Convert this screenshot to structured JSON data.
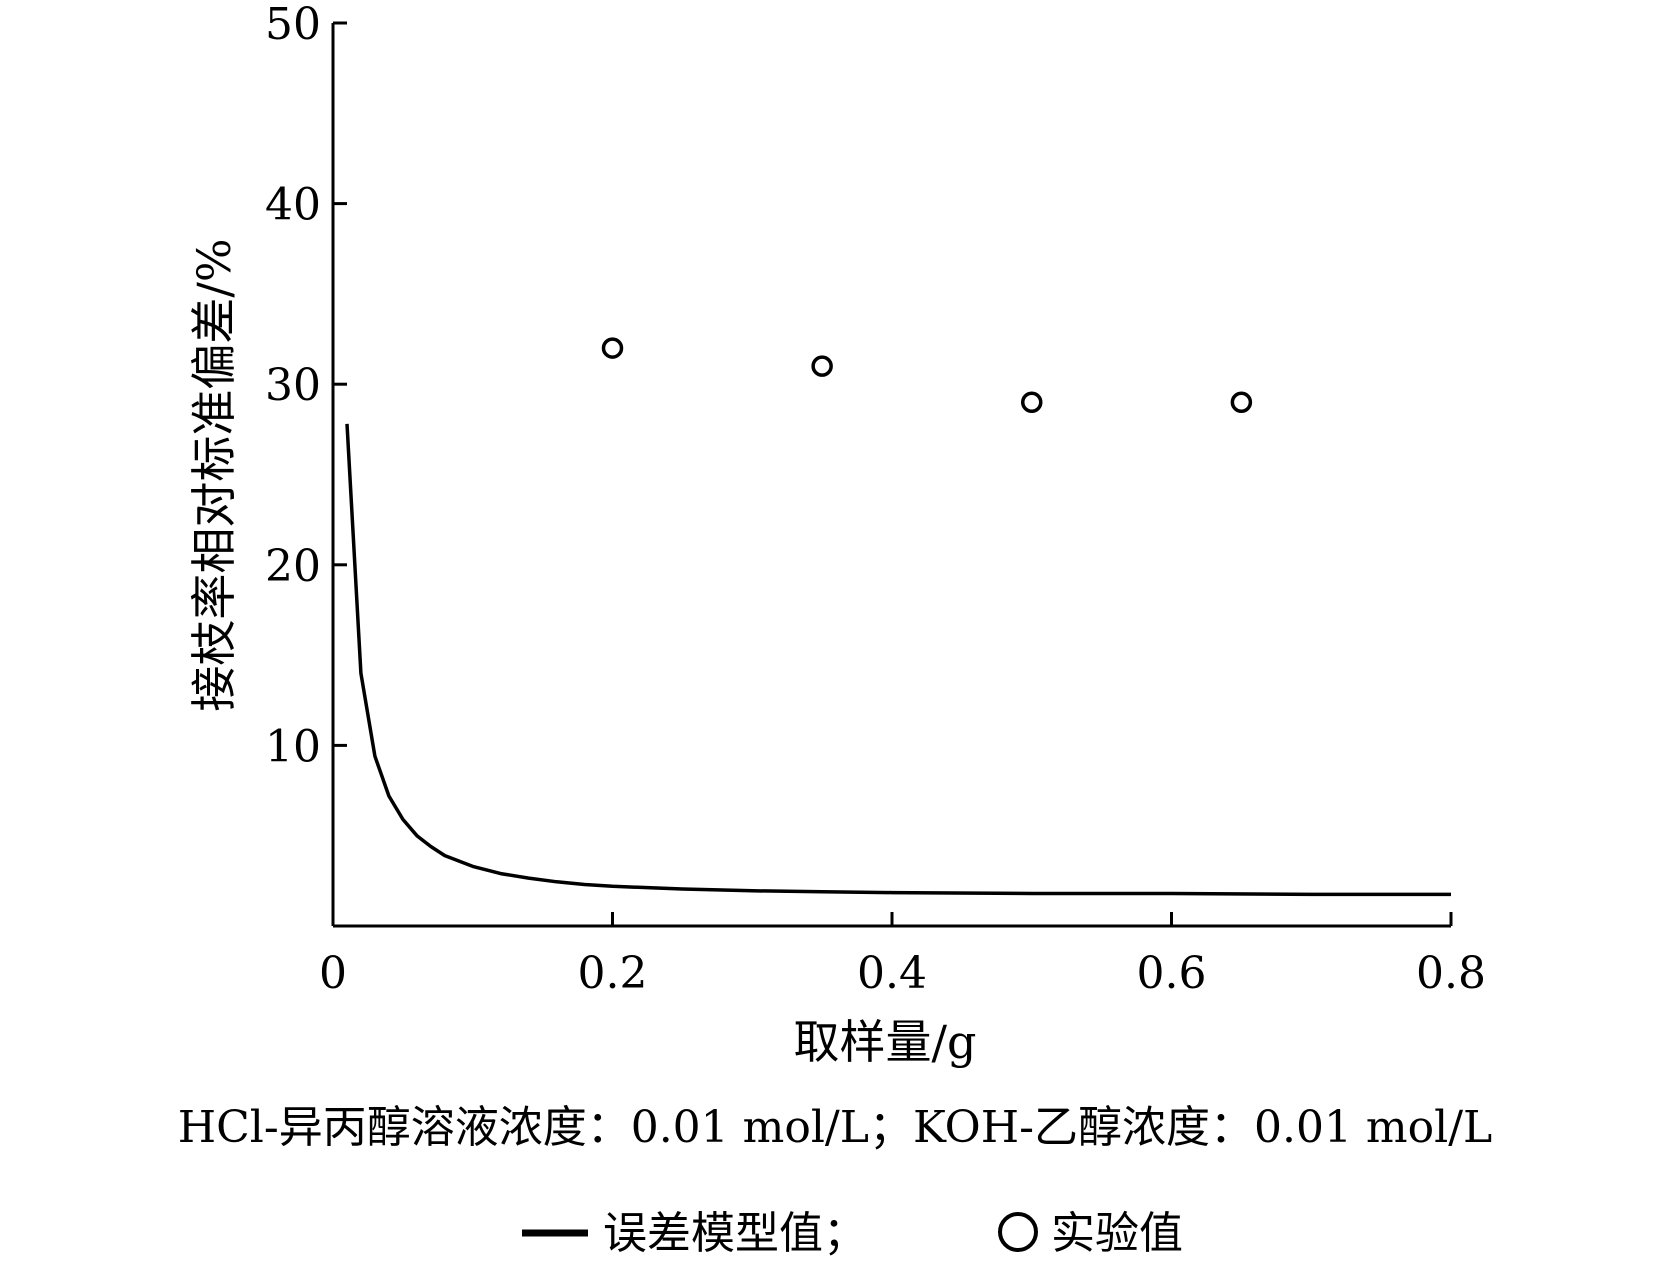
{
  "chart_data": {
    "type": "line",
    "title": "",
    "xlabel": "取样量/g",
    "ylabel": "接枝率相对标准偏差/%",
    "xlim": [
      0,
      0.8
    ],
    "ylim": [
      0,
      50
    ],
    "xticks": [
      0,
      0.2,
      0.4,
      0.6,
      0.8
    ],
    "xtick_labels": [
      "0",
      "0.2",
      "0.4",
      "0.6",
      "0.8"
    ],
    "yticks": [
      10,
      20,
      30,
      40,
      50
    ],
    "ytick_labels": [
      "10",
      "20",
      "30",
      "40",
      "50"
    ],
    "grid": false,
    "legend_position": "bottom",
    "caption": "HCl-异丙醇溶液浓度：0.01 mol/L；KOH-乙醇浓度：0.01 mol/L",
    "legend_text": {
      "model": "误差模型值；",
      "experiment": "实验值"
    },
    "series": [
      {
        "name": "误差模型值",
        "type": "line",
        "color": "#000000",
        "x": [
          0.01,
          0.02,
          0.03,
          0.04,
          0.05,
          0.06,
          0.07,
          0.08,
          0.09,
          0.1,
          0.12,
          0.14,
          0.16,
          0.18,
          0.2,
          0.25,
          0.3,
          0.35,
          0.4,
          0.5,
          0.6,
          0.7,
          0.8
        ],
        "y": [
          27.8,
          14.0,
          9.4,
          7.2,
          5.9,
          5.0,
          4.4,
          3.9,
          3.6,
          3.3,
          2.9,
          2.65,
          2.45,
          2.3,
          2.2,
          2.05,
          1.95,
          1.9,
          1.85,
          1.8,
          1.8,
          1.75,
          1.75
        ]
      },
      {
        "name": "实验值",
        "type": "scatter",
        "marker": "open-circle",
        "color": "#000000",
        "x": [
          0.2,
          0.35,
          0.5,
          0.65
        ],
        "y": [
          32,
          31,
          29,
          29
        ]
      }
    ]
  }
}
